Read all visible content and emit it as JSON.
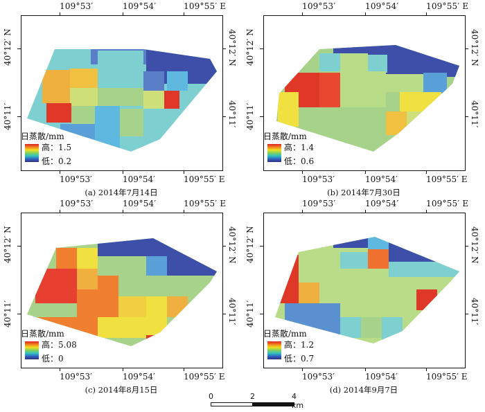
{
  "lon_labels": [
    "109°53′",
    "109°54′",
    "109°55′ E"
  ],
  "lat_labels": [
    "40°12′ N",
    "40°11′"
  ],
  "legend": {
    "title": "日蒸散/mm",
    "high_prefix": "高：",
    "low_prefix": "低："
  },
  "panels": [
    {
      "caption": "(a) 2014年7月14日",
      "high": "1.5",
      "low": "0.2"
    },
    {
      "caption": "(b) 2014年7月30日",
      "high": "1.4",
      "low": "0.6"
    },
    {
      "caption": "(c) 2014年8月15日",
      "high": "5.08",
      "low": "0"
    },
    {
      "caption": "(d) 2014年9月7日",
      "high": "1.2",
      "low": "0.7"
    }
  ],
  "scale_bar": {
    "labels": [
      "0",
      "2",
      "4 km"
    ]
  },
  "colors": {
    "dark_blue": "#3d4fa8",
    "blue": "#5a7fc8",
    "sky": "#5eb8e0",
    "cyan": "#7ecfd0",
    "green": "#a6d28a",
    "yellowgreen": "#cfe07a",
    "yellow": "#f0e040",
    "orange": "#f0b040",
    "red": "#e03828"
  }
}
